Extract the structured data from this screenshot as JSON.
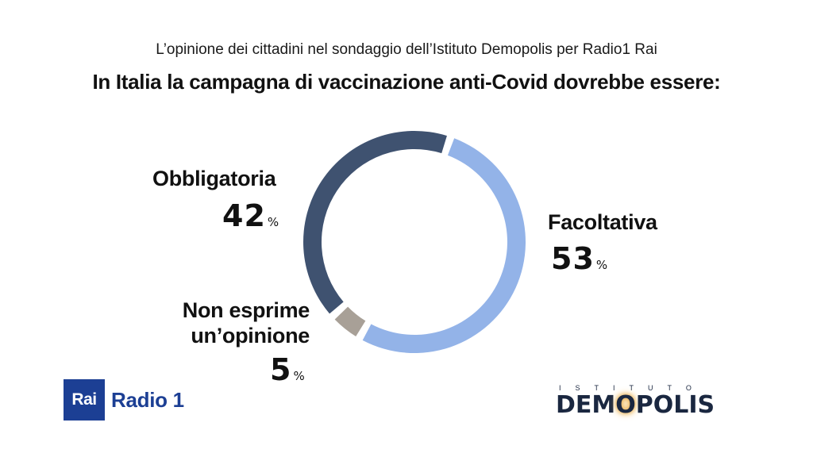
{
  "chart_data": {
    "type": "pie",
    "subtitle": "L’opinione dei cittadini nel sondaggio dell’Istituto Demopolis per Radio1 Rai",
    "title": "In Italia la campagna di vaccinazione anti-Covid dovrebbe essere:",
    "slices": [
      {
        "label": "Facoltativa",
        "value": 53,
        "value_text": "53",
        "color": "#93b3e8"
      },
      {
        "label": "Non esprime un’opinione",
        "label_line1": "Non esprime",
        "label_line2": "un’opinione",
        "value": 5,
        "value_text": "5",
        "color": "#a8a097"
      },
      {
        "label": "Obbligatoria",
        "value": 42,
        "value_text": "42",
        "color": "#3f5270"
      }
    ],
    "unit": "%"
  },
  "logos": {
    "rai_box": "Rai",
    "rai_radio": "Radio 1",
    "demopolis_top": "ISTITUTO",
    "demopolis_main_a": "DEM",
    "demopolis_main_o": "O",
    "demopolis_main_b": "POLIS"
  }
}
